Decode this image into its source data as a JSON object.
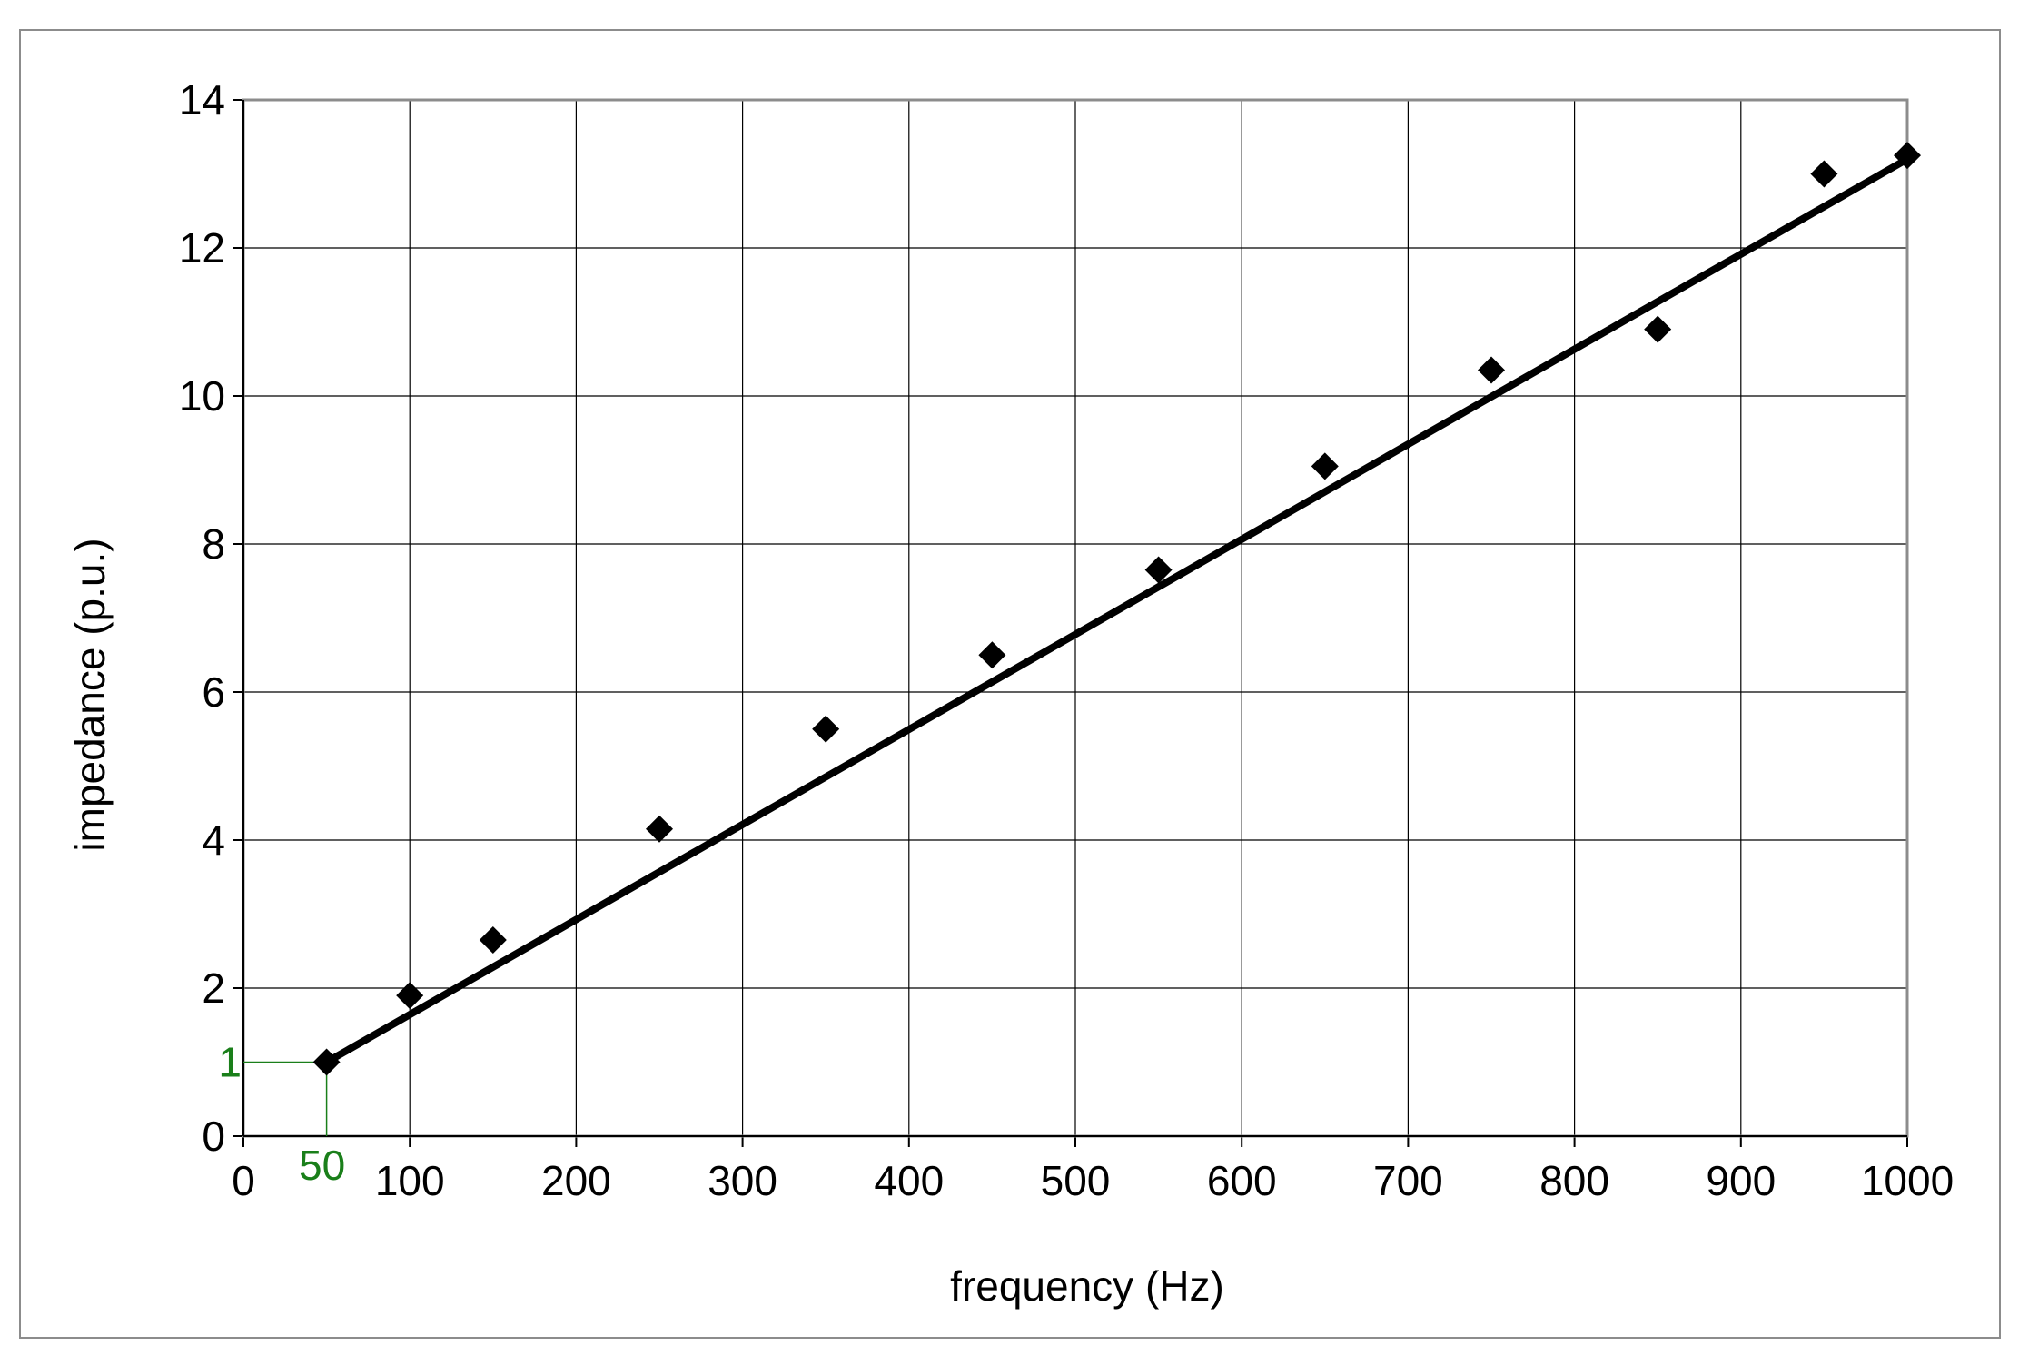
{
  "chart_data": {
    "type": "scatter",
    "title": "",
    "xlabel": "frequency (Hz)",
    "ylabel": "impedance (p.u.)",
    "xlim": [
      0,
      1000
    ],
    "ylim": [
      0,
      14
    ],
    "grid": true,
    "legend": "none",
    "x_ticks": [
      "0",
      "100",
      "200",
      "300",
      "400",
      "500",
      "600",
      "700",
      "800",
      "900",
      "1000"
    ],
    "y_ticks": [
      "0",
      "2",
      "4",
      "6",
      "8",
      "10",
      "12",
      "14"
    ],
    "series": [
      {
        "kind": "points",
        "marker": "diamond",
        "x": [
          50,
          100,
          150,
          250,
          350,
          450,
          550,
          650,
          750,
          850,
          950,
          1000
        ],
        "y": [
          1.0,
          1.9,
          2.65,
          4.15,
          5.5,
          6.5,
          7.65,
          9.05,
          10.35,
          10.9,
          13.0,
          13.25
        ]
      },
      {
        "kind": "fit-line",
        "x": [
          50,
          1000
        ],
        "y": [
          1.0,
          13.2
        ]
      }
    ],
    "annotations": [
      {
        "text_x": "50",
        "text_y": "1",
        "x": 50,
        "y": 1
      }
    ],
    "colors": {
      "points": "#000000",
      "line": "#000000",
      "grid": "#000000",
      "annotation": "#1a7f1a",
      "frame": "#8c8c8c"
    }
  }
}
